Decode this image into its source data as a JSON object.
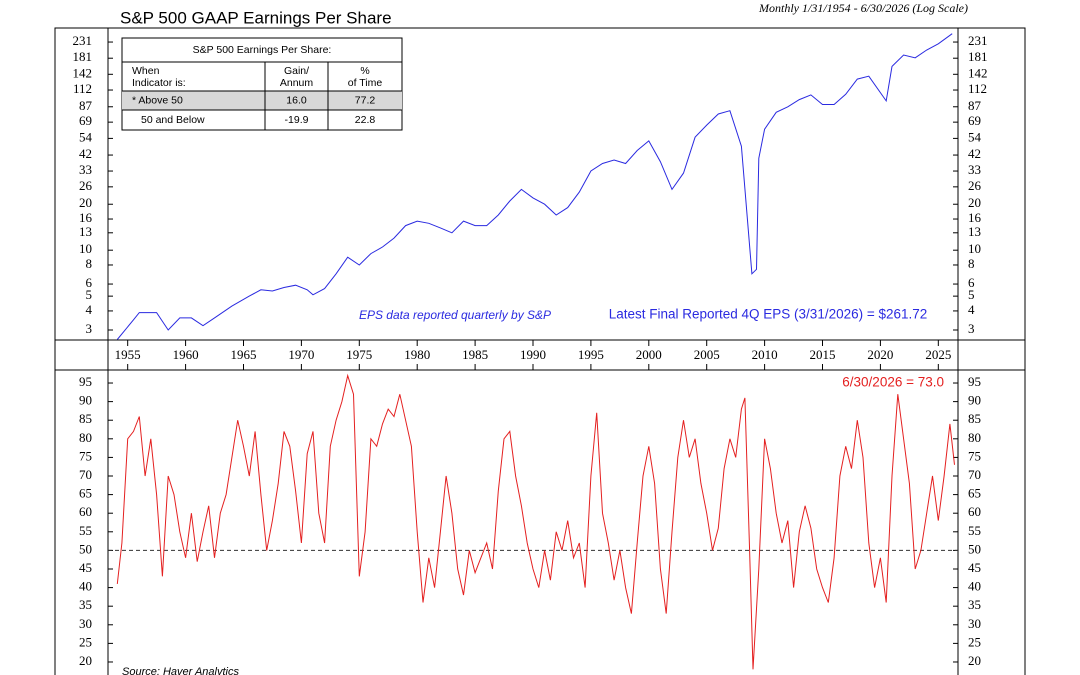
{
  "chart_data": [
    {
      "type": "line",
      "title": "S&P 500 GAAP Earnings Per Share",
      "subtitle": "Monthly 1/31/1954 - 6/30/2026 (Log Scale)",
      "log_scale": true,
      "color": "#2a2ae0",
      "xlim": [
        1953.3,
        2026.7
      ],
      "xticks": [
        1955,
        1960,
        1965,
        1970,
        1975,
        1980,
        1985,
        1990,
        1995,
        2000,
        2005,
        2010,
        2015,
        2020,
        2025
      ],
      "ylim": [
        2.58,
        277
      ],
      "yticks": [
        3,
        4,
        5,
        6,
        8,
        10,
        13,
        16,
        20,
        26,
        33,
        42,
        54,
        69,
        87,
        112,
        142,
        181,
        231
      ],
      "x": [
        1954.1,
        1955.5,
        1956,
        1957.5,
        1958.5,
        1959.5,
        1960.5,
        1961.5,
        1962.5,
        1964,
        1965.5,
        1966.5,
        1967.5,
        1968.5,
        1969.5,
        1970.5,
        1971,
        1972,
        1973,
        1974,
        1975,
        1976,
        1977,
        1978,
        1979,
        1980,
        1981,
        1982,
        1983,
        1984,
        1985,
        1986,
        1987,
        1988,
        1989,
        1990,
        1991,
        1992,
        1993,
        1994,
        1995,
        1996,
        1997,
        1998,
        1999,
        2000,
        2001,
        2002,
        2003,
        2004,
        2005,
        2006,
        2007,
        2008,
        2008.9,
        2009.3,
        2009.5,
        2010,
        2011,
        2012,
        2013,
        2014,
        2015,
        2016,
        2017,
        2018,
        2019,
        2020.5,
        2021,
        2022,
        2023,
        2024,
        2025,
        2026.2
      ],
      "values": [
        2.6,
        3.5,
        3.9,
        3.9,
        3.0,
        3.6,
        3.6,
        3.2,
        3.6,
        4.3,
        5.0,
        5.5,
        5.4,
        5.7,
        5.9,
        5.5,
        5.1,
        5.6,
        7.0,
        9.0,
        8.0,
        9.5,
        10.5,
        12,
        14.5,
        15.5,
        15,
        14,
        13,
        15.5,
        14.5,
        14.5,
        17,
        21,
        25,
        22,
        20,
        17,
        19,
        24,
        33,
        37,
        39,
        37,
        45,
        52,
        38,
        25,
        32,
        55,
        66,
        78,
        82,
        48,
        7,
        7.5,
        40,
        62,
        80,
        87,
        97,
        104,
        90,
        90,
        105,
        132,
        138,
        95,
        160,
        190,
        182,
        205,
        225,
        262
      ],
      "annotations": [
        "EPS data reported quarterly by S&P",
        "Latest Final Reported 4Q EPS (3/31/2026) = $261.72"
      ],
      "table": {
        "title": "S&P 500 Earnings Per Share:",
        "columns": [
          [
            "When",
            "Indicator is:"
          ],
          [
            "Gain/",
            "Annum"
          ],
          [
            "%",
            "of Time"
          ]
        ],
        "rows": [
          [
            "* Above 50",
            "16.0",
            "77.2"
          ],
          [
            "50 and Below",
            "-19.9",
            "22.8"
          ]
        ]
      }
    },
    {
      "type": "line",
      "color": "#e42020",
      "reference_line": 50,
      "xlim": [
        1953.3,
        2026.7
      ],
      "ylim": [
        16.5,
        98.5
      ],
      "yticks": [
        20,
        25,
        30,
        35,
        40,
        45,
        50,
        55,
        60,
        65,
        70,
        75,
        80,
        85,
        90,
        95
      ],
      "x": [
        1954.1,
        1954.5,
        1955,
        1955.5,
        1956,
        1956.5,
        1957,
        1957.5,
        1958,
        1958.5,
        1959,
        1959.5,
        1960,
        1960.5,
        1961,
        1961.5,
        1962,
        1962.5,
        1963,
        1963.5,
        1964,
        1964.5,
        1965,
        1965.5,
        1966,
        1966.5,
        1967,
        1967.5,
        1968,
        1968.5,
        1969,
        1969.5,
        1970,
        1970.5,
        1971,
        1971.5,
        1972,
        1972.5,
        1973,
        1973.5,
        1974,
        1974.5,
        1975,
        1975.5,
        1976,
        1976.5,
        1977,
        1977.5,
        1978,
        1978.5,
        1979,
        1979.5,
        1980,
        1980.5,
        1981,
        1981.5,
        1982,
        1982.5,
        1983,
        1983.5,
        1984,
        1984.5,
        1985,
        1985.5,
        1986,
        1986.5,
        1987,
        1987.5,
        1988,
        1988.5,
        1989,
        1989.5,
        1990,
        1990.5,
        1991,
        1991.5,
        1992,
        1992.5,
        1993,
        1993.5,
        1994,
        1994.5,
        1995,
        1995.5,
        1996,
        1996.5,
        1997,
        1997.5,
        1998,
        1998.5,
        1999,
        1999.5,
        2000,
        2000.5,
        2001,
        2001.5,
        2002,
        2002.5,
        2003,
        2003.5,
        2004,
        2004.5,
        2005,
        2005.5,
        2006,
        2006.5,
        2007,
        2007.5,
        2008,
        2008.3,
        2008.7,
        2009,
        2009.5,
        2010,
        2010.5,
        2011,
        2011.5,
        2012,
        2012.5,
        2013,
        2013.5,
        2014,
        2014.5,
        2015,
        2015.5,
        2016,
        2016.5,
        2017,
        2017.5,
        2018,
        2018.5,
        2019,
        2019.5,
        2020,
        2020.5,
        2021,
        2021.5,
        2022,
        2022.5,
        2023,
        2023.5,
        2024,
        2024.5,
        2025,
        2025.5,
        2026,
        2026.4
      ],
      "values": [
        41,
        52,
        80,
        82,
        86,
        70,
        80,
        65,
        43,
        70,
        65,
        55,
        48,
        60,
        47,
        55,
        62,
        48,
        60,
        65,
        75,
        85,
        78,
        70,
        82,
        65,
        50,
        58,
        68,
        82,
        78,
        66,
        52,
        76,
        82,
        60,
        52,
        78,
        85,
        90,
        97,
        92,
        43,
        55,
        80,
        78,
        84,
        88,
        86,
        92,
        85,
        78,
        55,
        36,
        48,
        40,
        55,
        70,
        60,
        45,
        38,
        50,
        44,
        48,
        52,
        45,
        66,
        80,
        82,
        70,
        62,
        52,
        45,
        40,
        50,
        42,
        55,
        50,
        58,
        48,
        52,
        40,
        70,
        87,
        60,
        52,
        42,
        50,
        40,
        33,
        52,
        70,
        78,
        68,
        45,
        33,
        55,
        75,
        85,
        75,
        80,
        68,
        60,
        50,
        56,
        72,
        80,
        75,
        88,
        91,
        50,
        18,
        45,
        80,
        72,
        60,
        52,
        58,
        40,
        55,
        62,
        56,
        45,
        40,
        36,
        48,
        70,
        78,
        72,
        85,
        75,
        52,
        40,
        48,
        36,
        70,
        92,
        80,
        68,
        45,
        50,
        60,
        70,
        58,
        70,
        84,
        73
      ],
      "annotations": [
        "6/30/2026 = 73.0",
        "Source: Haver Analytics"
      ]
    }
  ]
}
